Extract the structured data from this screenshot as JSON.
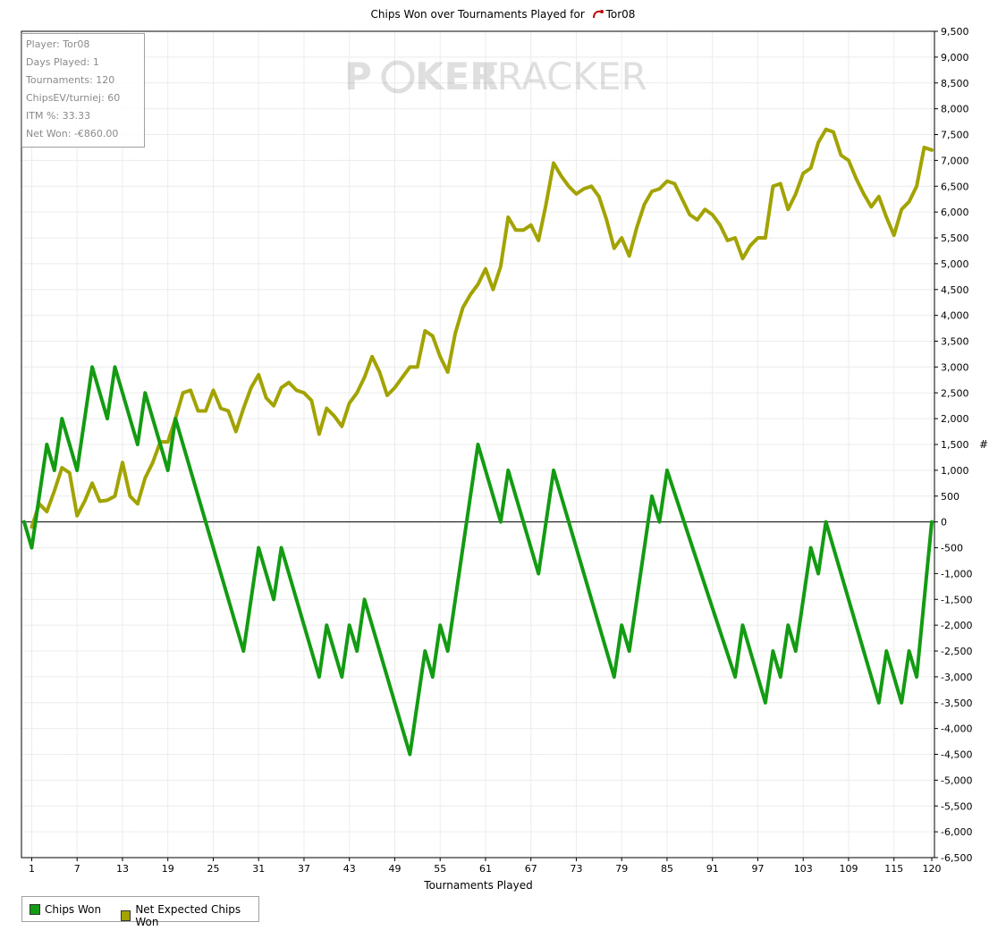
{
  "title": {
    "prefix": "Chips Won over Tournaments Played for",
    "player": "Tor08"
  },
  "watermark": {
    "part1": "P",
    "part2": "KER",
    "part3": "TRACKER"
  },
  "infobox": [
    "Player: Tor08",
    "Days Played: 1",
    "Tournaments: 120",
    "ChipsEV/turniej: 60",
    "ITM %: 33.33",
    "Net Won: -€860.00"
  ],
  "legend": {
    "chips_won": "Chips Won",
    "net_expected": "Net Expected Chips Won"
  },
  "colors": {
    "chips_won": "#139b13",
    "net_expected": "#a3a300",
    "grid": "#ececec",
    "zero_line": "#000000"
  },
  "chart_data": {
    "type": "line",
    "xlabel": "Tournaments Played",
    "ylabel": "#",
    "xlim": [
      0,
      120
    ],
    "ylim": [
      -6500,
      9500
    ],
    "y_tick_step": 500,
    "x_ticks": [
      1,
      7,
      13,
      19,
      25,
      31,
      37,
      43,
      49,
      55,
      61,
      67,
      73,
      79,
      85,
      91,
      97,
      103,
      109,
      115,
      120
    ],
    "y_tick_labels": [
      "9,500",
      "9,000",
      "8,500",
      "8,000",
      "7,500",
      "7,000",
      "6,500",
      "6,000",
      "5,500",
      "5,000",
      "4,500",
      "4,000",
      "3,500",
      "3,000",
      "2,500",
      "2,000",
      "1,500",
      "1,000",
      "500",
      "0",
      "-500",
      "-1,000",
      "-1,500",
      "-2,000",
      "-2,500",
      "-3,000",
      "-3,500",
      "-4,000",
      "-4,500",
      "-5,000",
      "-5,500",
      "-6,000",
      "-6,500"
    ],
    "series": [
      {
        "name": "Chips Won",
        "points": [
          [
            0,
            0
          ],
          [
            1,
            -500
          ],
          [
            2,
            500
          ],
          [
            3,
            1500
          ],
          [
            4,
            1000
          ],
          [
            5,
            2000
          ],
          [
            6,
            1500
          ],
          [
            7,
            1000
          ],
          [
            8,
            2000
          ],
          [
            9,
            3000
          ],
          [
            10,
            2500
          ],
          [
            11,
            2000
          ],
          [
            12,
            3000
          ],
          [
            13,
            2500
          ],
          [
            14,
            2000
          ],
          [
            15,
            1500
          ],
          [
            16,
            2500
          ],
          [
            17,
            2000
          ],
          [
            18,
            1500
          ],
          [
            19,
            1000
          ],
          [
            20,
            2000
          ],
          [
            29,
            -2500
          ],
          [
            31,
            -500
          ],
          [
            33,
            -1500
          ],
          [
            34,
            -500
          ],
          [
            39,
            -3000
          ],
          [
            40,
            -2000
          ],
          [
            42,
            -3000
          ],
          [
            43,
            -2000
          ],
          [
            44,
            -2500
          ],
          [
            45,
            -1500
          ],
          [
            51,
            -4500
          ],
          [
            53,
            -2500
          ],
          [
            54,
            -3000
          ],
          [
            55,
            -2000
          ],
          [
            56,
            -2500
          ],
          [
            60,
            1500
          ],
          [
            63,
            0
          ],
          [
            64,
            1000
          ],
          [
            68,
            -1000
          ],
          [
            70,
            1000
          ],
          [
            78,
            -3000
          ],
          [
            79,
            -2000
          ],
          [
            80,
            -2500
          ],
          [
            83,
            500
          ],
          [
            84,
            0
          ],
          [
            85,
            1000
          ],
          [
            94,
            -3000
          ],
          [
            95,
            -2000
          ],
          [
            98,
            -3500
          ],
          [
            99,
            -2500
          ],
          [
            100,
            -3000
          ],
          [
            101,
            -2000
          ],
          [
            102,
            -2500
          ],
          [
            104,
            -500
          ],
          [
            105,
            -1000
          ],
          [
            106,
            0
          ],
          [
            113,
            -3500
          ],
          [
            114,
            -2500
          ],
          [
            116,
            -3500
          ],
          [
            117,
            -2500
          ],
          [
            118,
            -3000
          ],
          [
            120,
            0
          ]
        ]
      },
      {
        "name": "Net Expected Chips Won",
        "points": [
          [
            1,
            -100
          ],
          [
            2,
            350
          ],
          [
            3,
            200
          ],
          [
            4,
            600
          ],
          [
            5,
            1050
          ],
          [
            6,
            950
          ],
          [
            7,
            120
          ],
          [
            8,
            400
          ],
          [
            9,
            750
          ],
          [
            10,
            400
          ],
          [
            11,
            420
          ],
          [
            12,
            500
          ],
          [
            13,
            1150
          ],
          [
            14,
            500
          ],
          [
            15,
            350
          ],
          [
            16,
            850
          ],
          [
            17,
            1150
          ],
          [
            18,
            1550
          ],
          [
            19,
            1550
          ],
          [
            20,
            2000
          ],
          [
            21,
            2500
          ],
          [
            22,
            2550
          ],
          [
            23,
            2150
          ],
          [
            24,
            2150
          ],
          [
            25,
            2550
          ],
          [
            26,
            2200
          ],
          [
            27,
            2150
          ],
          [
            28,
            1750
          ],
          [
            29,
            2200
          ],
          [
            30,
            2600
          ],
          [
            31,
            2850
          ],
          [
            32,
            2400
          ],
          [
            33,
            2250
          ],
          [
            34,
            2600
          ],
          [
            35,
            2700
          ],
          [
            36,
            2550
          ],
          [
            37,
            2500
          ],
          [
            38,
            2350
          ],
          [
            39,
            1700
          ],
          [
            40,
            2200
          ],
          [
            41,
            2050
          ],
          [
            42,
            1850
          ],
          [
            43,
            2300
          ],
          [
            44,
            2500
          ],
          [
            45,
            2800
          ],
          [
            46,
            3200
          ],
          [
            47,
            2900
          ],
          [
            48,
            2450
          ],
          [
            49,
            2600
          ],
          [
            50,
            2800
          ],
          [
            51,
            3000
          ],
          [
            52,
            3000
          ],
          [
            53,
            3700
          ],
          [
            54,
            3600
          ],
          [
            55,
            3200
          ],
          [
            56,
            2900
          ],
          [
            57,
            3650
          ],
          [
            58,
            4150
          ],
          [
            59,
            4400
          ],
          [
            60,
            4600
          ],
          [
            61,
            4900
          ],
          [
            62,
            4500
          ],
          [
            63,
            4950
          ],
          [
            64,
            5900
          ],
          [
            65,
            5650
          ],
          [
            66,
            5650
          ],
          [
            67,
            5750
          ],
          [
            68,
            5450
          ],
          [
            69,
            6150
          ],
          [
            70,
            6950
          ],
          [
            71,
            6700
          ],
          [
            72,
            6500
          ],
          [
            73,
            6350
          ],
          [
            74,
            6450
          ],
          [
            75,
            6500
          ],
          [
            76,
            6300
          ],
          [
            77,
            5850
          ],
          [
            78,
            5300
          ],
          [
            79,
            5500
          ],
          [
            80,
            5150
          ],
          [
            81,
            5700
          ],
          [
            82,
            6150
          ],
          [
            83,
            6400
          ],
          [
            84,
            6450
          ],
          [
            85,
            6600
          ],
          [
            86,
            6550
          ],
          [
            87,
            6250
          ],
          [
            88,
            5950
          ],
          [
            89,
            5850
          ],
          [
            90,
            6050
          ],
          [
            91,
            5950
          ],
          [
            92,
            5750
          ],
          [
            93,
            5450
          ],
          [
            94,
            5500
          ],
          [
            95,
            5100
          ],
          [
            96,
            5350
          ],
          [
            97,
            5500
          ],
          [
            98,
            5500
          ],
          [
            99,
            6500
          ],
          [
            100,
            6550
          ],
          [
            101,
            6050
          ],
          [
            102,
            6350
          ],
          [
            103,
            6750
          ],
          [
            104,
            6850
          ],
          [
            105,
            7350
          ],
          [
            106,
            7600
          ],
          [
            107,
            7550
          ],
          [
            108,
            7100
          ],
          [
            109,
            7000
          ],
          [
            110,
            6650
          ],
          [
            111,
            6350
          ],
          [
            112,
            6100
          ],
          [
            113,
            6300
          ],
          [
            114,
            5900
          ],
          [
            115,
            5550
          ],
          [
            116,
            6050
          ],
          [
            117,
            6200
          ],
          [
            118,
            6500
          ],
          [
            119,
            7250
          ],
          [
            120,
            7200
          ]
        ]
      }
    ]
  }
}
